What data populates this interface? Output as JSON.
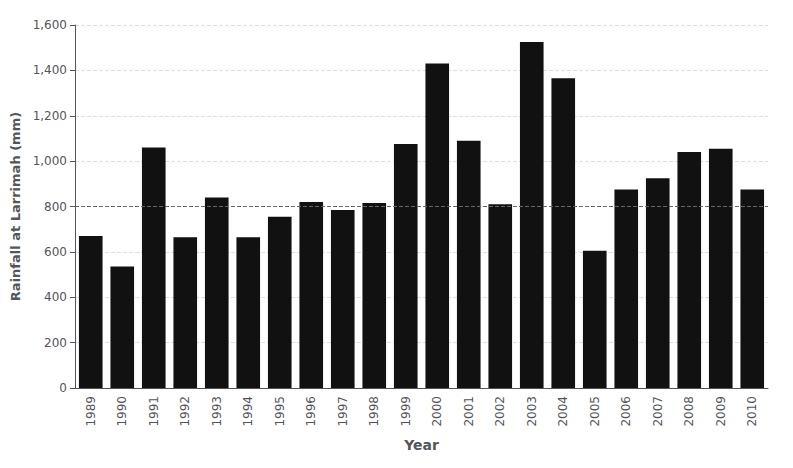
{
  "chart_data": {
    "type": "bar",
    "categories": [
      "1989",
      "1990",
      "1991",
      "1992",
      "1993",
      "1994",
      "1995",
      "1996",
      "1997",
      "1998",
      "1999",
      "2000",
      "2001",
      "2002",
      "2003",
      "2004",
      "2005",
      "2006",
      "2007",
      "2008",
      "2009",
      "2010"
    ],
    "values": [
      670,
      535,
      1060,
      665,
      840,
      665,
      755,
      820,
      785,
      815,
      1075,
      1430,
      1090,
      810,
      1525,
      1365,
      605,
      875,
      925,
      1040,
      1055,
      875
    ],
    "color": "#111111",
    "xlabel": "Year",
    "ylabel": "Rainfall at Larrimah (mm)",
    "ylim": [
      0,
      1600
    ],
    "yticks": [
      0,
      200,
      400,
      600,
      800,
      1000,
      1200,
      1400,
      1600
    ],
    "grid": true,
    "reference_line": {
      "value": 800,
      "color": "#666666",
      "line_style": "dashed"
    }
  }
}
